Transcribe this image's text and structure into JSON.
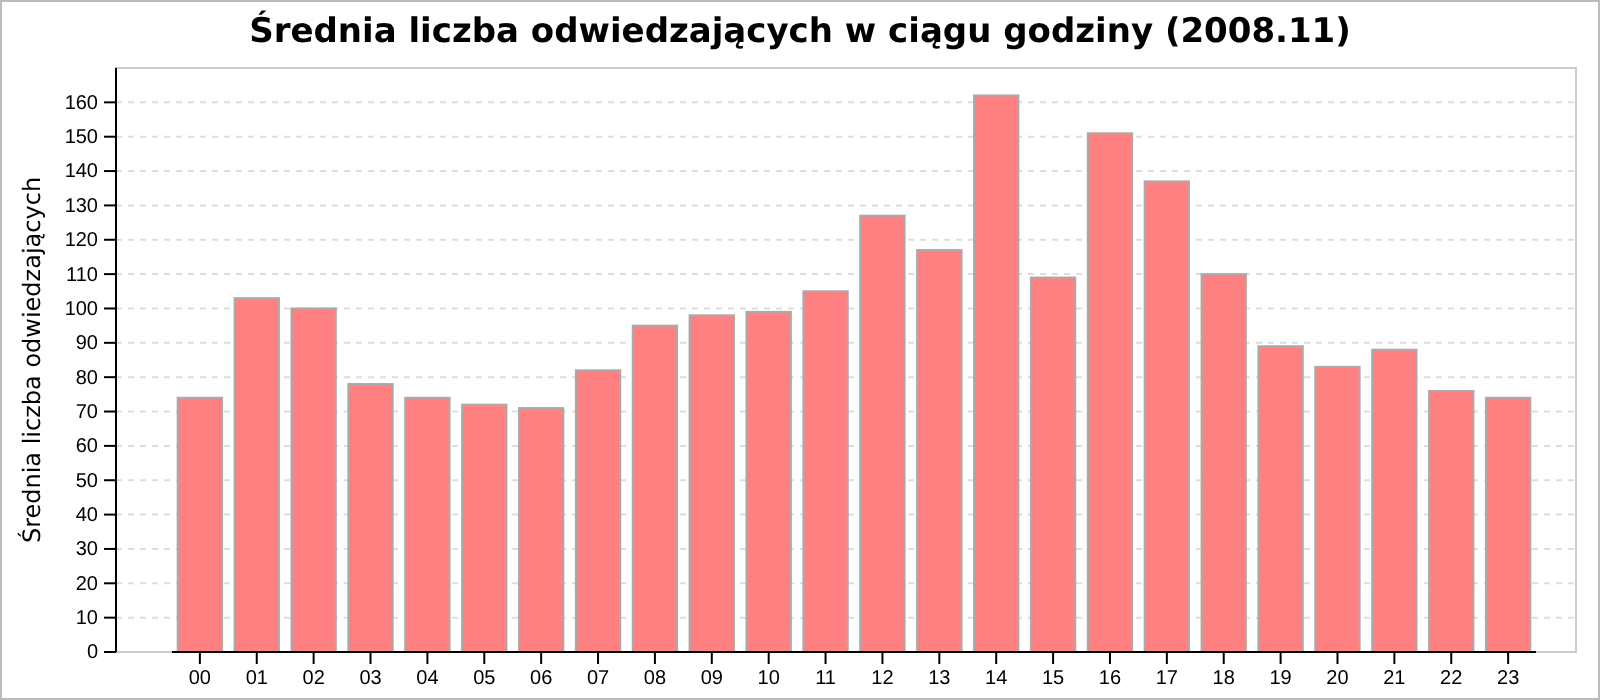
{
  "chart_data": {
    "type": "bar",
    "title": "Średnia liczba odwiedzających w ciągu godziny (2008.11)",
    "ylabel": "Średnia liczba odwiedzających",
    "categories": [
      "00",
      "01",
      "02",
      "03",
      "04",
      "05",
      "06",
      "07",
      "08",
      "09",
      "10",
      "11",
      "12",
      "13",
      "14",
      "15",
      "16",
      "17",
      "18",
      "19",
      "20",
      "21",
      "22",
      "23"
    ],
    "values": [
      74,
      103,
      100,
      78,
      74,
      72,
      71,
      82,
      95,
      98,
      99,
      105,
      127,
      117,
      162,
      109,
      151,
      137,
      110,
      89,
      83,
      88,
      76,
      74
    ],
    "color": "#ff8080",
    "ylim": [
      0,
      170
    ],
    "yticks": [
      0,
      10,
      20,
      30,
      40,
      50,
      60,
      70,
      80,
      90,
      100,
      110,
      120,
      130,
      140,
      150,
      160
    ],
    "grid": "y"
  }
}
